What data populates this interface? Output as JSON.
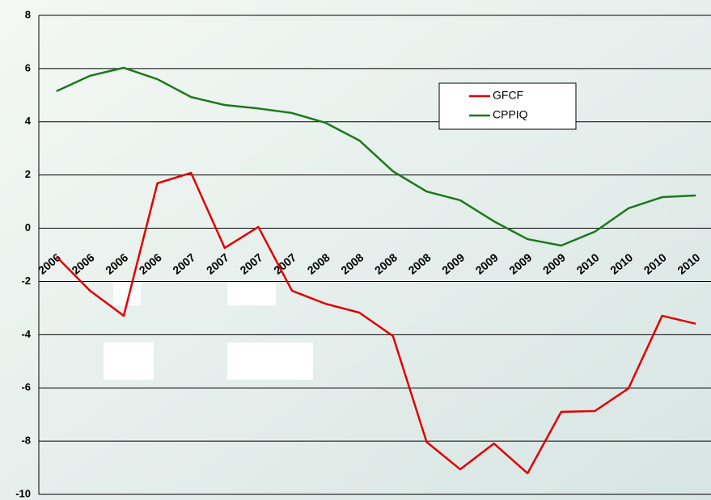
{
  "chart_data": {
    "type": "line",
    "categories": [
      "2006",
      "2006",
      "2006",
      "2006",
      "2007",
      "2007",
      "2007",
      "2007",
      "2008",
      "2008",
      "2008",
      "2008",
      "2009",
      "2009",
      "2009",
      "2009",
      "2010",
      "2010",
      "2010",
      "2010"
    ],
    "series": [
      {
        "name": "GFCF",
        "color": "#e00000",
        "values": [
          -1.07,
          -2.35,
          -3.29,
          1.69,
          2.08,
          -0.74,
          0.05,
          -2.35,
          -2.84,
          -3.17,
          -4.05,
          -8.03,
          -9.06,
          -8.09,
          -9.21,
          -6.9,
          -6.87,
          -6.02,
          -3.29,
          -3.59
        ]
      },
      {
        "name": "CPPIQ",
        "color": "#1a7a1a",
        "values": [
          5.15,
          5.73,
          6.03,
          5.6,
          4.93,
          4.63,
          4.5,
          4.33,
          3.96,
          3.3,
          2.14,
          1.38,
          1.05,
          0.26,
          -0.41,
          -0.65,
          -0.13,
          0.75,
          1.17,
          1.23
        ]
      }
    ],
    "ylim": [
      -10,
      8
    ],
    "yticks": [
      -10,
      -8,
      -6,
      -4,
      -2,
      0,
      2,
      4,
      6,
      8
    ],
    "grid": true
  }
}
